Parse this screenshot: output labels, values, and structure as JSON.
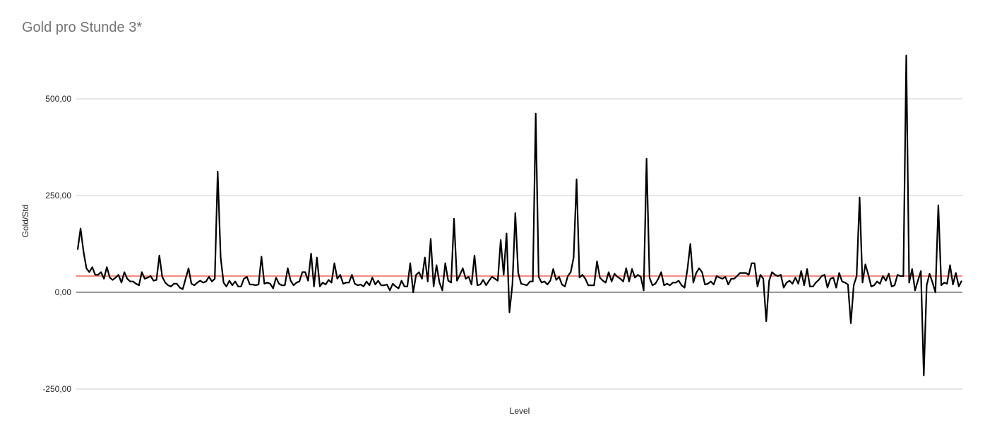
{
  "chart_data": {
    "type": "line",
    "title": "Gold pro Stunde 3*",
    "xlabel": "Level",
    "ylabel": "Gold/Std",
    "ylim": [
      -250,
      620
    ],
    "yticks": [
      {
        "value": 500,
        "label": "500,00"
      },
      {
        "value": 250,
        "label": "250,00"
      },
      {
        "value": 0,
        "label": "0,00"
      },
      {
        "value": -250,
        "label": "-250,00"
      }
    ],
    "grid": true,
    "reference_line": {
      "value": 42,
      "color": "#f28b82"
    },
    "line_color": "#000000",
    "values": [
      110,
      165,
      105,
      62,
      52,
      65,
      45,
      45,
      52,
      35,
      65,
      38,
      32,
      38,
      45,
      25,
      52,
      35,
      28,
      28,
      22,
      18,
      52,
      35,
      38,
      42,
      30,
      32,
      95,
      40,
      25,
      18,
      15,
      22,
      22,
      12,
      8,
      35,
      62,
      22,
      18,
      25,
      30,
      25,
      28,
      40,
      28,
      35,
      312,
      90,
      25,
      15,
      30,
      18,
      28,
      15,
      15,
      35,
      40,
      20,
      20,
      18,
      20,
      92,
      22,
      25,
      22,
      10,
      38,
      22,
      18,
      18,
      62,
      30,
      18,
      25,
      28,
      52,
      52,
      30,
      100,
      15,
      90,
      15,
      25,
      20,
      32,
      25,
      75,
      35,
      45,
      22,
      25,
      25,
      45,
      22,
      18,
      20,
      15,
      28,
      18,
      38,
      20,
      30,
      18,
      18,
      20,
      5,
      22,
      15,
      10,
      30,
      15,
      15,
      75,
      0,
      45,
      52,
      35,
      90,
      28,
      138,
      15,
      70,
      25,
      5,
      75,
      30,
      25,
      190,
      30,
      45,
      62,
      35,
      40,
      20,
      95,
      18,
      20,
      32,
      18,
      30,
      40,
      35,
      30,
      135,
      45,
      152,
      -52,
      20,
      205,
      50,
      22,
      20,
      18,
      28,
      28,
      462,
      40,
      25,
      28,
      20,
      30,
      60,
      32,
      40,
      20,
      15,
      42,
      52,
      90,
      292,
      38,
      45,
      35,
      18,
      18,
      18,
      80,
      38,
      30,
      25,
      52,
      28,
      48,
      40,
      35,
      28,
      62,
      28,
      60,
      38,
      45,
      40,
      5,
      345,
      38,
      18,
      22,
      35,
      52,
      18,
      22,
      18,
      25,
      25,
      30,
      18,
      12,
      60,
      125,
      25,
      50,
      62,
      52,
      20,
      22,
      28,
      20,
      42,
      38,
      35,
      40,
      20,
      35,
      35,
      42,
      50,
      50,
      50,
      45,
      75,
      75,
      15,
      45,
      35,
      -75,
      30,
      52,
      45,
      42,
      45,
      12,
      25,
      30,
      22,
      38,
      22,
      55,
      18,
      60,
      15,
      15,
      25,
      32,
      42,
      45,
      12,
      35,
      38,
      12,
      50,
      28,
      25,
      20,
      -80,
      18,
      42,
      245,
      25,
      72,
      45,
      15,
      18,
      28,
      22,
      42,
      30,
      48,
      15,
      18,
      45,
      42,
      42,
      612,
      25,
      60,
      5,
      30,
      55,
      -215,
      18,
      48,
      25,
      0,
      225,
      18,
      25,
      22,
      70,
      20,
      50,
      15,
      30
    ]
  }
}
